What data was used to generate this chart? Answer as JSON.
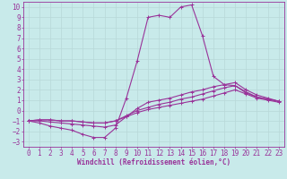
{
  "bg_color": "#c8eaea",
  "line_color": "#993399",
  "grid_color": "#aadddd",
  "xlabel": "Windchill (Refroidissement éolien,°C)",
  "xlim": [
    -0.5,
    23.5
  ],
  "ylim": [
    -3.5,
    10.5
  ],
  "xticks": [
    0,
    1,
    2,
    3,
    4,
    5,
    6,
    7,
    8,
    9,
    10,
    11,
    12,
    13,
    14,
    15,
    16,
    17,
    18,
    19,
    20,
    21,
    22,
    23
  ],
  "yticks": [
    -3,
    -2,
    -1,
    0,
    1,
    2,
    3,
    4,
    5,
    6,
    7,
    8,
    9,
    10
  ],
  "line1_x": [
    0,
    1,
    2,
    3,
    4,
    5,
    6,
    7,
    8,
    9,
    10,
    11,
    12,
    13,
    14,
    15,
    16,
    17,
    18,
    19,
    20,
    21,
    22,
    23
  ],
  "line1_y": [
    -1,
    -1.2,
    -1.5,
    -1.7,
    -1.9,
    -2.3,
    -2.6,
    -2.6,
    -1.7,
    1.2,
    4.8,
    9.0,
    9.2,
    9.0,
    10.0,
    10.2,
    7.2,
    3.3,
    2.5,
    2.4,
    1.7,
    1.3,
    1.1,
    0.9
  ],
  "line2_x": [
    0,
    1,
    2,
    3,
    4,
    5,
    6,
    7,
    8,
    9,
    10,
    11,
    12,
    13,
    14,
    15,
    16,
    17,
    18,
    19,
    20,
    21,
    22,
    23
  ],
  "line2_y": [
    -1,
    -1.0,
    -1.1,
    -1.2,
    -1.3,
    -1.4,
    -1.5,
    -1.6,
    -1.4,
    -0.6,
    0.2,
    0.8,
    1.0,
    1.2,
    1.5,
    1.8,
    2.0,
    2.3,
    2.5,
    2.7,
    2.0,
    1.5,
    1.2,
    0.9
  ],
  "line3_x": [
    0,
    1,
    2,
    3,
    4,
    5,
    6,
    7,
    8,
    9,
    10,
    11,
    12,
    13,
    14,
    15,
    16,
    17,
    18,
    19,
    20,
    21,
    22,
    23
  ],
  "line3_y": [
    -1,
    -0.9,
    -0.9,
    -1.0,
    -1.0,
    -1.1,
    -1.2,
    -1.2,
    -1.0,
    -0.6,
    -0.2,
    0.1,
    0.3,
    0.5,
    0.7,
    0.9,
    1.1,
    1.4,
    1.7,
    2.0,
    1.6,
    1.2,
    1.0,
    0.8
  ],
  "line4_x": [
    0,
    1,
    2,
    3,
    4,
    5,
    6,
    7,
    8,
    9,
    10,
    11,
    12,
    13,
    14,
    15,
    16,
    17,
    18,
    19,
    20,
    21,
    22,
    23
  ],
  "line4_y": [
    -1,
    -0.9,
    -0.9,
    -1.0,
    -1.0,
    -1.1,
    -1.2,
    -1.2,
    -1.0,
    -0.5,
    0.0,
    0.3,
    0.6,
    0.8,
    1.1,
    1.3,
    1.6,
    1.9,
    2.2,
    2.4,
    1.8,
    1.3,
    1.1,
    0.9
  ],
  "xlabel_fontsize": 5.5,
  "tick_fontsize": 5.5,
  "marker_size": 2.5,
  "line_width": 0.8
}
